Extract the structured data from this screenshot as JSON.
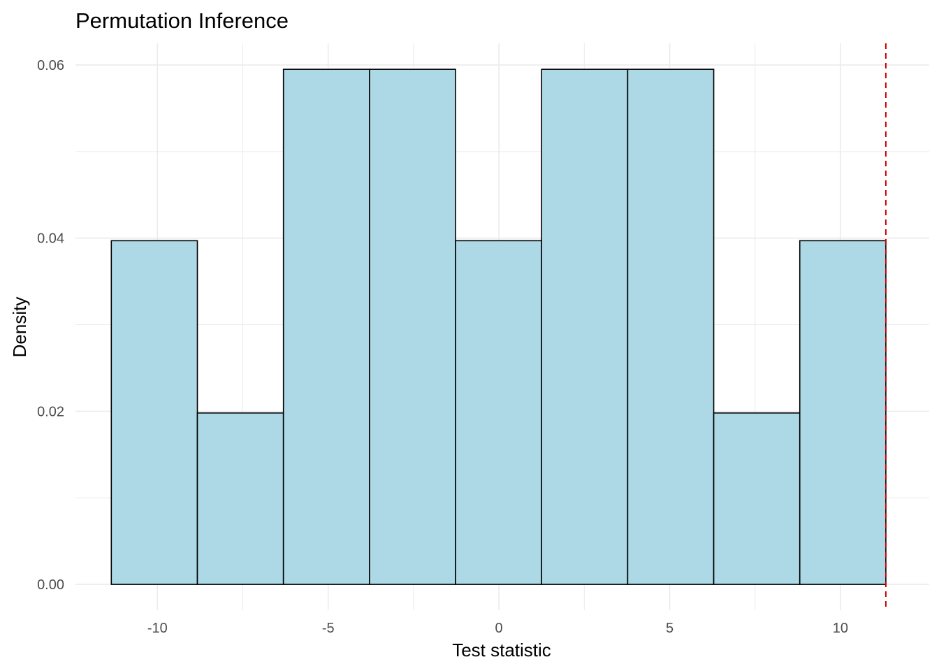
{
  "chart_data": {
    "type": "bar",
    "title": "Permutation Inference",
    "xlabel": "Test statistic",
    "ylabel": "Density",
    "xlim": [
      -12.4,
      12.6
    ],
    "ylim": [
      -0.00298,
      0.0625
    ],
    "x_ticks": [
      -10,
      -5,
      0,
      5,
      10
    ],
    "x_tick_labels": [
      "-10",
      "-5",
      "0",
      "5",
      "10"
    ],
    "y_ticks": [
      0.0,
      0.02,
      0.04,
      0.06
    ],
    "y_tick_labels": [
      "0.00",
      "0.02",
      "0.04",
      "0.06"
    ],
    "bins": [
      {
        "x0": -11.35,
        "x1": -8.83,
        "value": 0.0397
      },
      {
        "x0": -8.83,
        "x1": -6.31,
        "value": 0.0198
      },
      {
        "x0": -6.31,
        "x1": -3.79,
        "value": 0.0595
      },
      {
        "x0": -3.79,
        "x1": -1.27,
        "value": 0.0595
      },
      {
        "x0": -1.27,
        "x1": 1.25,
        "value": 0.0397
      },
      {
        "x0": 1.25,
        "x1": 3.77,
        "value": 0.0595
      },
      {
        "x0": 3.77,
        "x1": 6.29,
        "value": 0.0595
      },
      {
        "x0": 6.29,
        "x1": 8.81,
        "value": 0.0198
      },
      {
        "x0": 8.81,
        "x1": 11.33,
        "value": 0.0397
      }
    ],
    "reference_line": {
      "x": 11.33,
      "style": "dashed",
      "color": "#cc0000"
    },
    "grid": true,
    "legend": "none",
    "colors": {
      "bar_fill": "#add8e6",
      "bar_stroke": "#000000",
      "grid": "#ebebeb"
    }
  }
}
